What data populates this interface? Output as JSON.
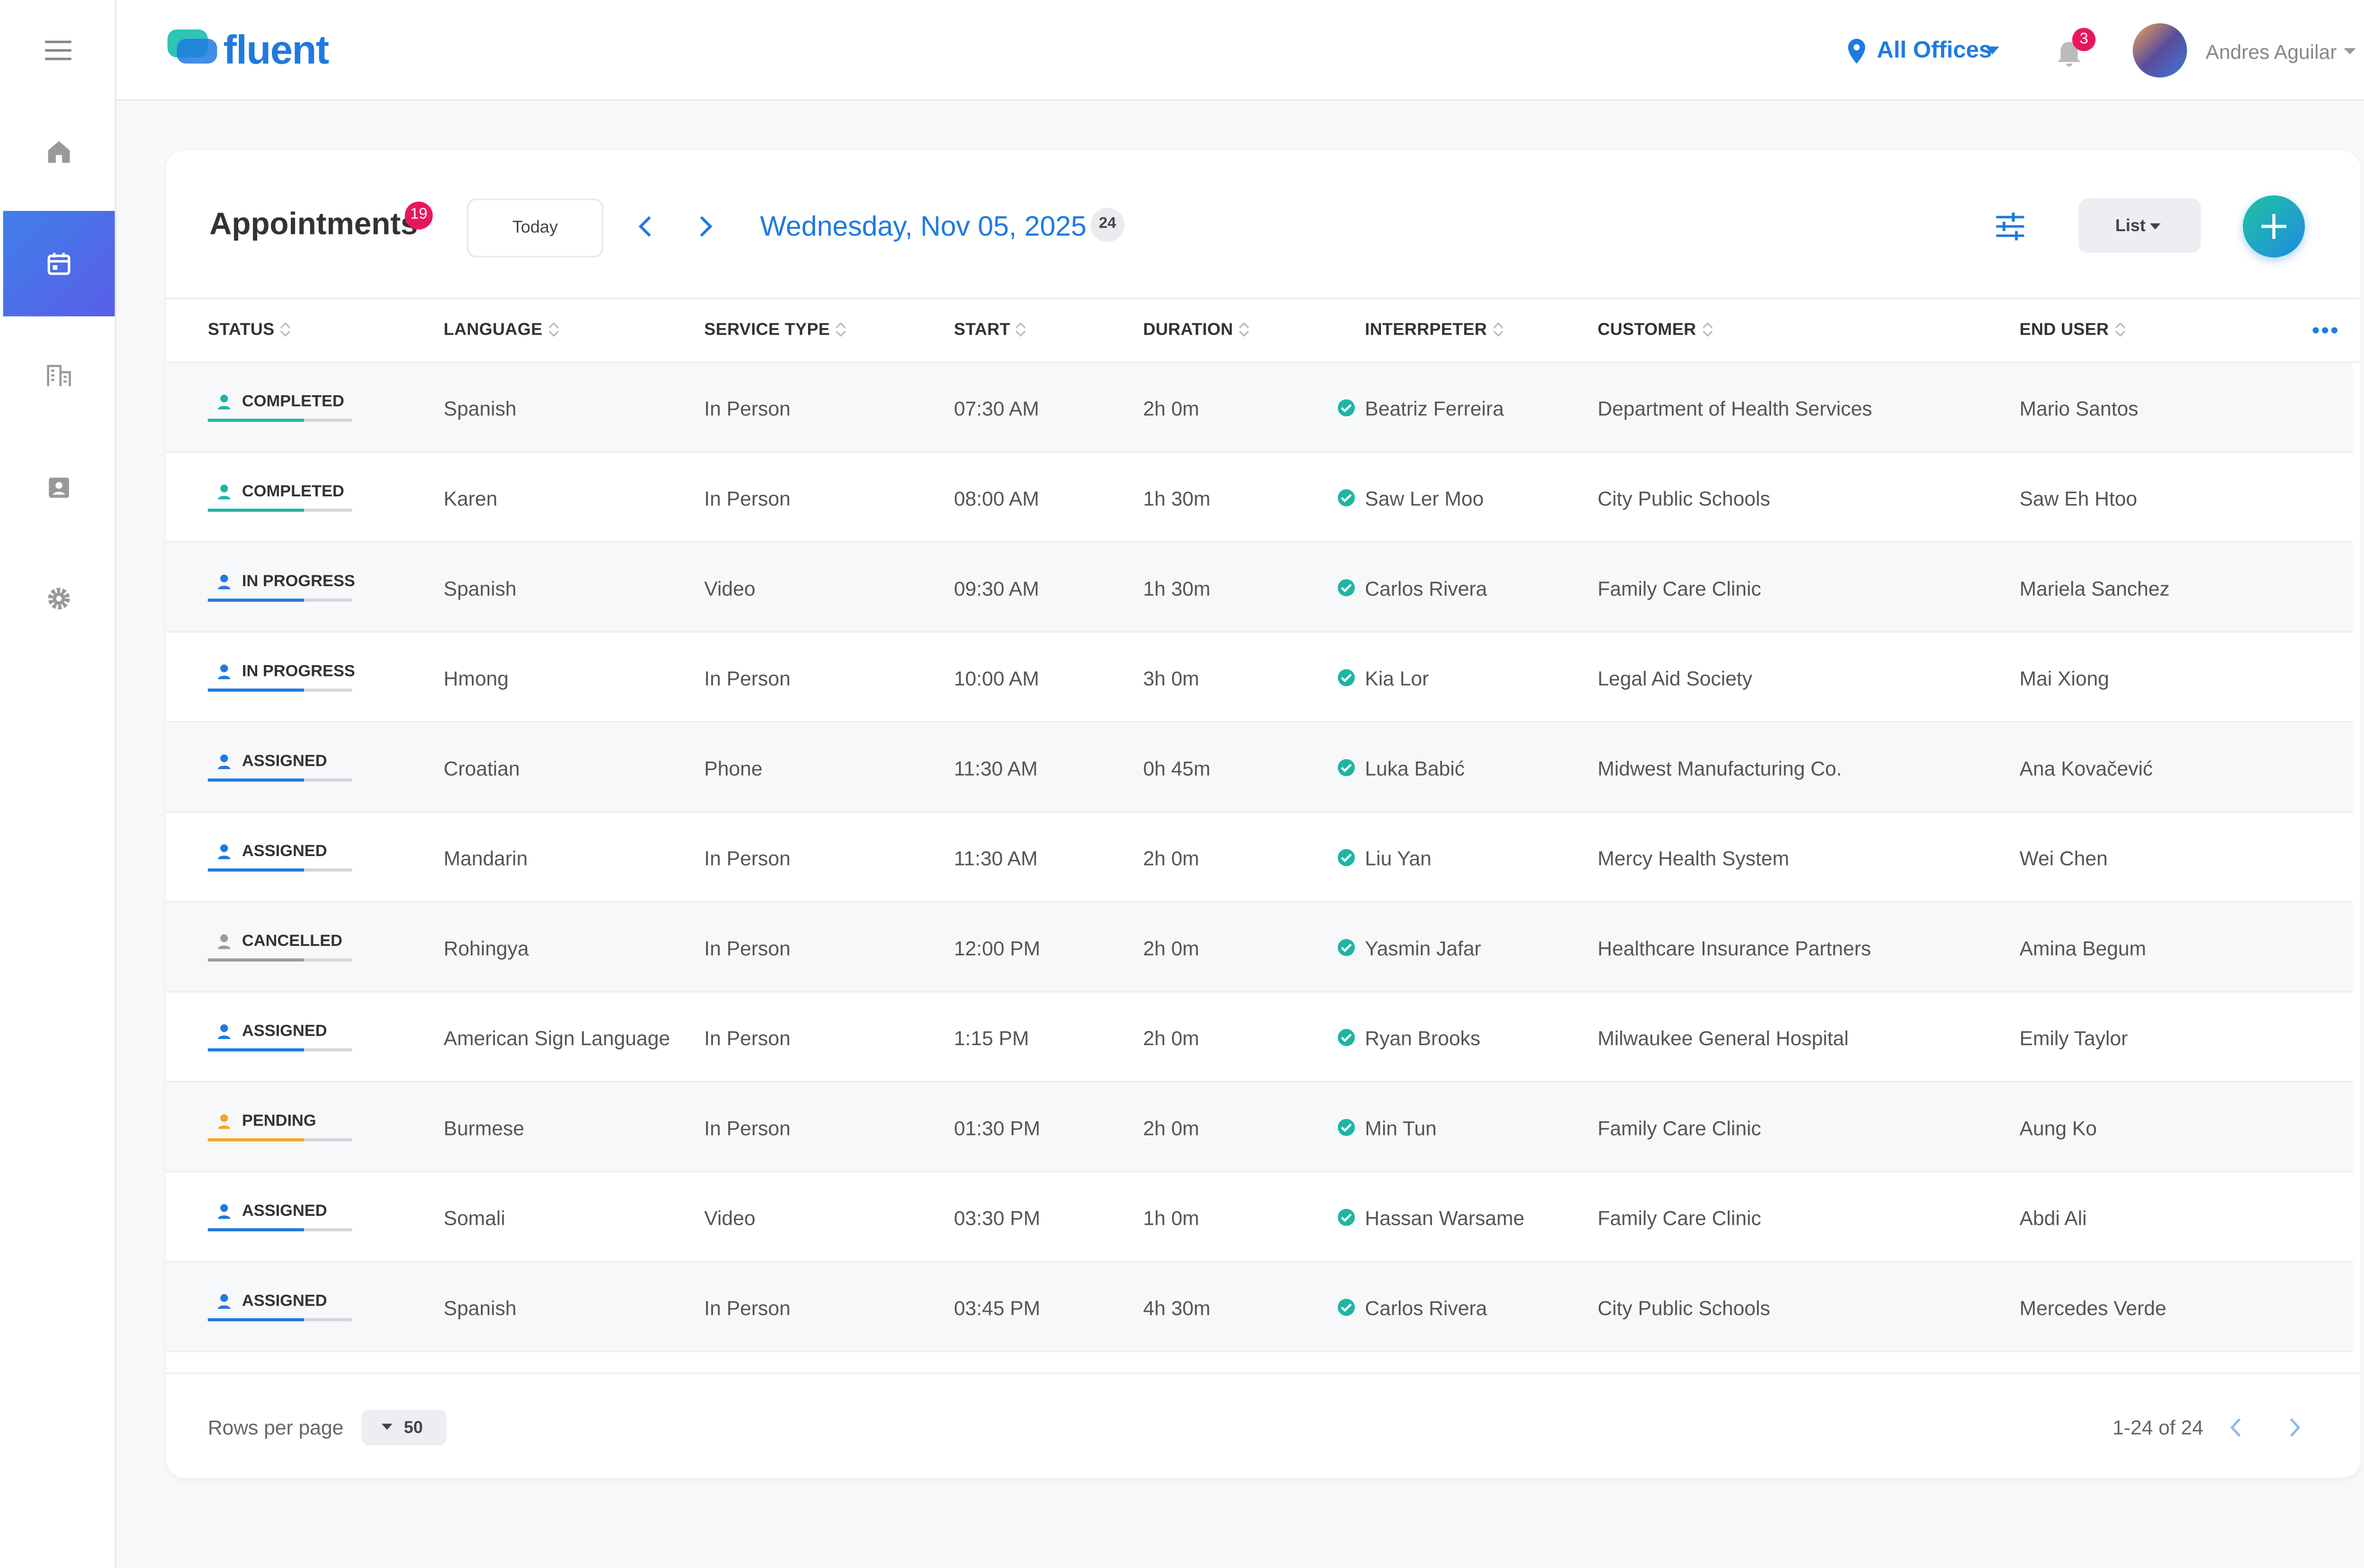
{
  "header": {
    "logo": "fluent",
    "office": "All Offices",
    "notifications": "3",
    "user": "Andres Aguilar"
  },
  "toolbar": {
    "title": "Appointments",
    "badge": "19",
    "today": "Today",
    "date": "Wednesday, Nov 05, 2025",
    "count": "24",
    "view": "List"
  },
  "table": {
    "columns": [
      "STATUS",
      "LANGUAGE",
      "SERVICE TYPE",
      "START",
      "DURATION",
      "INTERRPETER",
      "CUSTOMER",
      "END USER"
    ],
    "rows": [
      {
        "status": "COMPLETED",
        "color": "#1fb5a3",
        "language": "Spanish",
        "service_type": "In Person",
        "start": "07:30 AM",
        "duration": "2h 0m",
        "interpreter": "Beatriz Ferreira",
        "customer": "Department of Health Services",
        "end_user": "Mario Santos"
      },
      {
        "status": "COMPLETED",
        "color": "#1fb5a3",
        "language": "Karen",
        "service_type": "In Person",
        "start": "08:00 AM",
        "duration": "1h 30m",
        "interpreter": "Saw Ler Moo",
        "customer": "City Public Schools",
        "end_user": "Saw Eh Htoo"
      },
      {
        "status": "IN PROGRESS",
        "color": "#1f7ae0",
        "language": "Spanish",
        "service_type": "Video",
        "start": "09:30 AM",
        "duration": "1h 30m",
        "interpreter": "Carlos Rivera",
        "customer": "Family Care Clinic",
        "end_user": "Mariela Sanchez"
      },
      {
        "status": "IN PROGRESS",
        "color": "#1f7ae0",
        "language": "Hmong",
        "service_type": "In Person",
        "start": "10:00 AM",
        "duration": "3h 0m",
        "interpreter": "Kia Lor",
        "customer": "Legal Aid Society",
        "end_user": "Mai Xiong"
      },
      {
        "status": "ASSIGNED",
        "color": "#1f7ae0",
        "language": "Croatian",
        "service_type": "Phone",
        "start": "11:30 AM",
        "duration": "0h 45m",
        "interpreter": "Luka Babić",
        "customer": "Midwest Manufacturing Co.",
        "end_user": "Ana Kovačević"
      },
      {
        "status": "ASSIGNED",
        "color": "#1f7ae0",
        "language": "Mandarin",
        "service_type": "In Person",
        "start": "11:30 AM",
        "duration": "2h 0m",
        "interpreter": "Liu Yan",
        "customer": "Mercy Health System",
        "end_user": "Wei Chen"
      },
      {
        "status": "CANCELLED",
        "color": "#9a9a9a",
        "language": "Rohingya",
        "service_type": "In Person",
        "start": "12:00 PM",
        "duration": "2h 0m",
        "interpreter": "Yasmin Jafar",
        "customer": "Healthcare Insurance Partners",
        "end_user": "Amina Begum"
      },
      {
        "status": "ASSIGNED",
        "color": "#1f7ae0",
        "language": "American Sign Language",
        "service_type": "In Person",
        "start": "1:15 PM",
        "duration": "2h 0m",
        "interpreter": "Ryan Brooks",
        "customer": "Milwaukee General Hospital",
        "end_user": "Emily Taylor"
      },
      {
        "status": "PENDING",
        "color": "#f5a623",
        "language": "Burmese",
        "service_type": "In Person",
        "start": "01:30 PM",
        "duration": "2h 0m",
        "interpreter": "Min Tun",
        "customer": "Family Care Clinic",
        "end_user": "Aung Ko"
      },
      {
        "status": "ASSIGNED",
        "color": "#1f7ae0",
        "language": "Somali",
        "service_type": "Video",
        "start": "03:30 PM",
        "duration": "1h 0m",
        "interpreter": "Hassan Warsame",
        "customer": "Family Care Clinic",
        "end_user": "Abdi Ali"
      },
      {
        "status": "ASSIGNED",
        "color": "#1f7ae0",
        "language": "Spanish",
        "service_type": "In Person",
        "start": "03:45 PM",
        "duration": "4h 30m",
        "interpreter": "Carlos Rivera",
        "customer": "City Public Schools",
        "end_user": "Mercedes Verde"
      }
    ]
  },
  "footer": {
    "rows_label": "Rows per page",
    "rows_value": "50",
    "range": "1-24 of 24"
  }
}
